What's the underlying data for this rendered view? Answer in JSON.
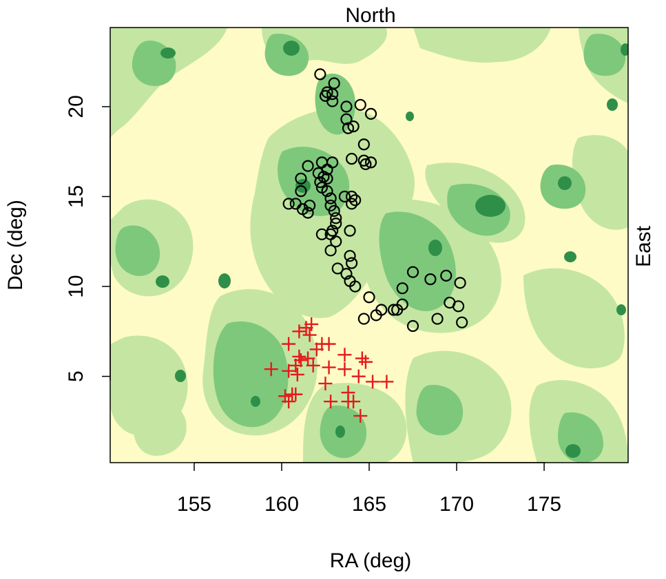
{
  "chart_data": {
    "type": "scatter",
    "top_label": "North",
    "right_label": "East",
    "xlabel": "RA (deg)",
    "ylabel": "Dec (deg)",
    "xlim": [
      150.2,
      179.8
    ],
    "ylim": [
      0.2,
      24.4
    ],
    "x_ticks": [
      155,
      160,
      165,
      170,
      175
    ],
    "y_ticks": [
      5,
      10,
      15,
      20
    ],
    "background": {
      "kind": "filled density contour",
      "levels": [
        "#fffbc6",
        "#c4e6a2",
        "#7ec87c",
        "#2f8f48"
      ]
    },
    "series": [
      {
        "marker": "open-circle",
        "color": "#000000",
        "points": [
          [
            162.2,
            21.8
          ],
          [
            163.0,
            21.3
          ],
          [
            162.6,
            20.8
          ],
          [
            162.9,
            20.7
          ],
          [
            162.5,
            20.6
          ],
          [
            162.9,
            20.3
          ],
          [
            163.7,
            20.0
          ],
          [
            164.5,
            20.1
          ],
          [
            165.1,
            19.6
          ],
          [
            163.7,
            19.3
          ],
          [
            164.1,
            18.9
          ],
          [
            163.8,
            18.8
          ],
          [
            164.7,
            17.9
          ],
          [
            164.0,
            17.1
          ],
          [
            164.7,
            17.0
          ],
          [
            165.1,
            16.9
          ],
          [
            164.8,
            16.8
          ],
          [
            162.9,
            16.9
          ],
          [
            162.3,
            16.9
          ],
          [
            161.5,
            16.7
          ],
          [
            162.6,
            16.5
          ],
          [
            162.1,
            16.3
          ],
          [
            162.4,
            16.1
          ],
          [
            162.6,
            16.0
          ],
          [
            161.1,
            16.0
          ],
          [
            162.2,
            15.8
          ],
          [
            162.3,
            15.5
          ],
          [
            162.6,
            15.3
          ],
          [
            161.1,
            15.3
          ],
          [
            163.6,
            15.0
          ],
          [
            162.8,
            14.9
          ],
          [
            164.0,
            15.0
          ],
          [
            164.2,
            14.8
          ],
          [
            164.0,
            14.6
          ],
          [
            160.4,
            14.6
          ],
          [
            160.8,
            14.6
          ],
          [
            161.6,
            14.5
          ],
          [
            161.2,
            14.3
          ],
          [
            162.8,
            14.5
          ],
          [
            161.5,
            14.1
          ],
          [
            163.0,
            14.2
          ],
          [
            163.1,
            13.8
          ],
          [
            163.1,
            13.5
          ],
          [
            163.9,
            13.1
          ],
          [
            162.9,
            13.1
          ],
          [
            162.8,
            12.9
          ],
          [
            162.3,
            12.9
          ],
          [
            163.1,
            12.5
          ],
          [
            162.8,
            12.0
          ],
          [
            163.9,
            11.7
          ],
          [
            164.0,
            11.3
          ],
          [
            163.2,
            11.0
          ],
          [
            163.7,
            10.7
          ],
          [
            163.9,
            10.3
          ],
          [
            164.2,
            10.0
          ],
          [
            165.0,
            9.4
          ],
          [
            167.5,
            10.8
          ],
          [
            168.5,
            10.4
          ],
          [
            169.4,
            10.6
          ],
          [
            170.2,
            10.2
          ],
          [
            166.9,
            9.9
          ],
          [
            169.6,
            9.1
          ],
          [
            170.1,
            8.9
          ],
          [
            166.9,
            9.0
          ],
          [
            165.7,
            8.7
          ],
          [
            166.4,
            8.7
          ],
          [
            166.6,
            8.7
          ],
          [
            165.4,
            8.4
          ],
          [
            164.7,
            8.2
          ],
          [
            168.9,
            8.2
          ],
          [
            167.5,
            7.8
          ],
          [
            170.3,
            8.0
          ]
        ]
      },
      {
        "marker": "plus",
        "color": "#e41a1c",
        "points": [
          [
            161.7,
            7.9
          ],
          [
            161.4,
            7.7
          ],
          [
            161.0,
            7.5
          ],
          [
            161.6,
            7.3
          ],
          [
            160.4,
            6.8
          ],
          [
            162.3,
            6.8
          ],
          [
            162.7,
            6.8
          ],
          [
            162.0,
            6.5
          ],
          [
            161.0,
            6.1
          ],
          [
            161.5,
            6.0
          ],
          [
            161.1,
            5.9
          ],
          [
            163.6,
            6.2
          ],
          [
            164.6,
            6.0
          ],
          [
            164.8,
            5.8
          ],
          [
            160.8,
            5.6
          ],
          [
            161.8,
            5.6
          ],
          [
            162.7,
            5.5
          ],
          [
            159.4,
            5.4
          ],
          [
            160.4,
            5.3
          ],
          [
            160.9,
            5.1
          ],
          [
            163.6,
            5.4
          ],
          [
            164.4,
            5.0
          ],
          [
            165.2,
            4.7
          ],
          [
            166.0,
            4.7
          ],
          [
            162.5,
            4.6
          ],
          [
            160.6,
            4.0
          ],
          [
            160.2,
            3.9
          ],
          [
            160.8,
            4.0
          ],
          [
            163.8,
            4.1
          ],
          [
            163.8,
            3.6
          ],
          [
            164.1,
            3.6
          ],
          [
            162.8,
            3.6
          ],
          [
            160.4,
            3.6
          ],
          [
            164.5,
            2.8
          ]
        ]
      }
    ]
  }
}
